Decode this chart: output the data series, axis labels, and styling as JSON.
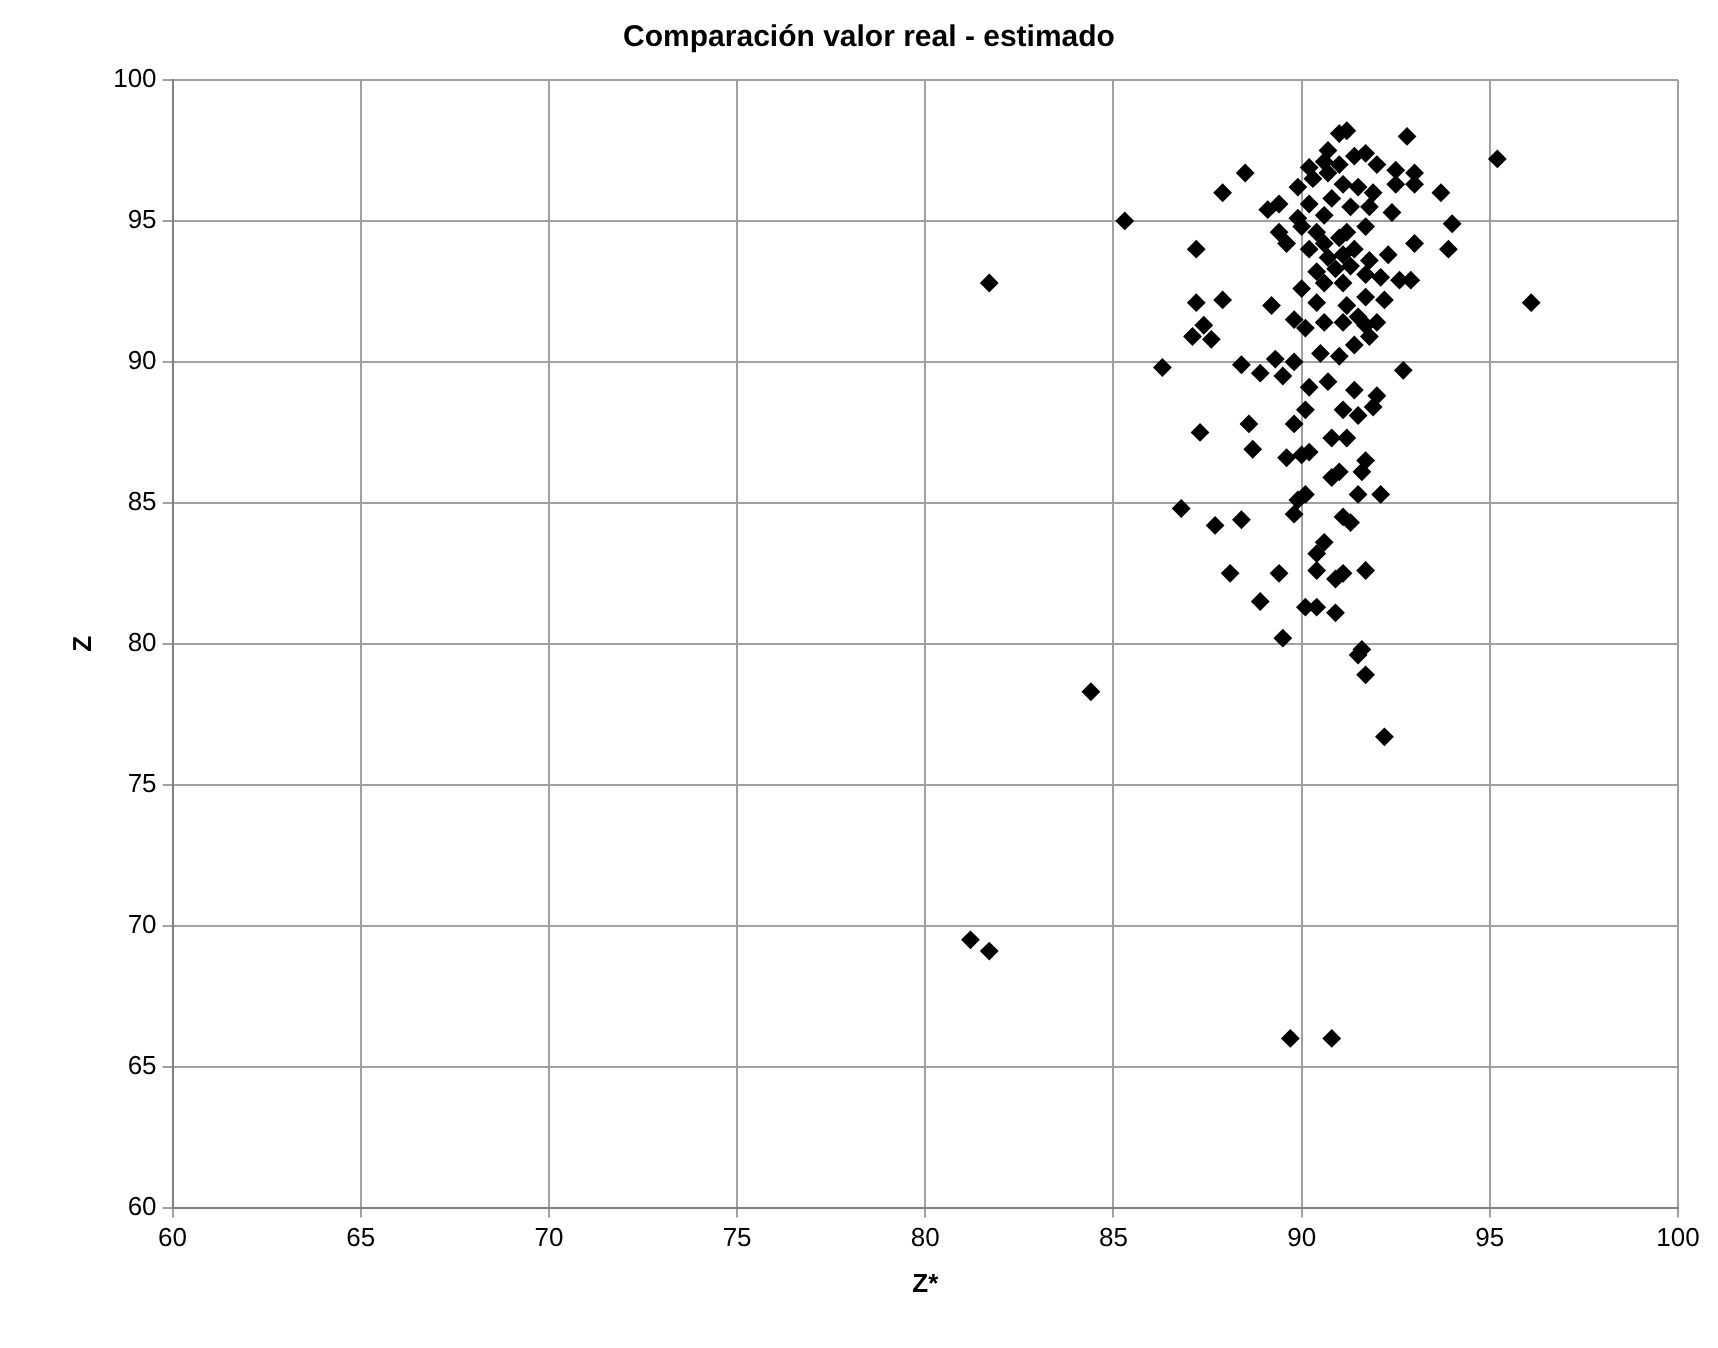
{
  "chart_data": {
    "type": "scatter",
    "title": "Comparación valor real - estimado",
    "xlabel": "Z*",
    "ylabel": "Z",
    "x": [
      81.7,
      85.3,
      84.4,
      81.2,
      81.7,
      89.7,
      90.8,
      95.2,
      96.1,
      92.2,
      91.7,
      91.5,
      91.6,
      89.5,
      88.9,
      90.1,
      90.4,
      90.9,
      88.1,
      89.4,
      90.9,
      91.1,
      91.7,
      90.4,
      90.4,
      90.6,
      86.8,
      87.7,
      88.4,
      89.8,
      90.1,
      89.9,
      91.3,
      91.1,
      91.5,
      92.1,
      90.8,
      91.0,
      91.6,
      91.7,
      89.6,
      90.0,
      90.2,
      90.8,
      91.2,
      88.7,
      88.6,
      87.3,
      89.8,
      90.1,
      91.1,
      91.5,
      91.9,
      92.0,
      91.4,
      90.7,
      90.2,
      89.5,
      88.9,
      88.4,
      86.3,
      87.1,
      87.6,
      87.4,
      89.3,
      89.8,
      90.5,
      91.0,
      91.4,
      91.8,
      92.7,
      90.6,
      91.1,
      91.7,
      92.0,
      91.5,
      90.1,
      89.8,
      89.2,
      87.2,
      87.9,
      90.4,
      91.2,
      91.7,
      92.2,
      90.0,
      90.6,
      91.1,
      92.1,
      92.6,
      92.9,
      90.4,
      90.9,
      91.3,
      91.7,
      90.7,
      91.1,
      91.4,
      91.8,
      92.3,
      93.0,
      93.9,
      90.2,
      90.6,
      91.0,
      89.4,
      89.6,
      90.0,
      90.4,
      91.2,
      91.7,
      87.2,
      89.1,
      89.4,
      89.9,
      90.6,
      91.3,
      91.8,
      92.4,
      90.2,
      90.8,
      87.9,
      88.5,
      89.9,
      90.3,
      90.7,
      91.1,
      91.5,
      91.9,
      92.5,
      93.0,
      93.7,
      90.2,
      90.6,
      91.0,
      91.4,
      92.0,
      92.5,
      93.0,
      94.0,
      90.7,
      91.0,
      91.2,
      92.8,
      91.7
    ],
    "values": [
      92.8,
      95,
      78.3,
      69.5,
      69.1,
      66,
      66,
      97.2,
      92.1,
      76.7,
      78.9,
      79.6,
      79.8,
      80.2,
      81.5,
      81.3,
      81.3,
      81.1,
      82.5,
      82.5,
      82.3,
      82.5,
      82.6,
      82.6,
      83.2,
      83.6,
      84.8,
      84.2,
      84.4,
      84.6,
      85.3,
      85.1,
      84.3,
      84.5,
      85.3,
      85.3,
      85.9,
      86.1,
      86.1,
      86.5,
      86.6,
      86.7,
      86.8,
      87.3,
      87.3,
      86.9,
      87.8,
      87.5,
      87.8,
      88.3,
      88.3,
      88.1,
      88.4,
      88.8,
      89.0,
      89.3,
      89.1,
      89.5,
      89.6,
      89.9,
      89.8,
      90.9,
      90.8,
      91.3,
      90.1,
      90.0,
      90.3,
      90.2,
      90.6,
      90.9,
      89.7,
      91.4,
      91.4,
      91.3,
      91.4,
      91.6,
      91.2,
      91.5,
      92.0,
      92.1,
      92.2,
      92.1,
      92.0,
      92.3,
      92.2,
      92.6,
      92.8,
      92.8,
      93.0,
      92.9,
      92.9,
      93.2,
      93.3,
      93.4,
      93.1,
      93.7,
      93.8,
      94.0,
      93.6,
      93.8,
      94.2,
      94.0,
      94.0,
      94.2,
      94.4,
      94.6,
      94.2,
      94.8,
      94.6,
      94.6,
      94.8,
      94.0,
      95.4,
      95.6,
      95.1,
      95.2,
      95.5,
      95.5,
      95.3,
      95.6,
      95.8,
      96.0,
      96.7,
      96.2,
      96.5,
      96.7,
      96.3,
      96.2,
      96.0,
      96.3,
      96.3,
      96.0,
      96.9,
      97.1,
      97.0,
      97.3,
      97.0,
      96.8,
      96.7,
      94.9,
      97.5,
      98.1,
      98.2,
      98.0,
      97.4
    ],
    "color": "#000000",
    "marker": "diamond",
    "xlim": [
      60,
      100
    ],
    "xticks": [
      60,
      65,
      70,
      75,
      80,
      85,
      90,
      95,
      100
    ],
    "ylim": [
      60,
      100
    ],
    "yticks": [
      60,
      65,
      70,
      75,
      80,
      85,
      90,
      95,
      100
    ],
    "grid": true,
    "legend": false
  }
}
